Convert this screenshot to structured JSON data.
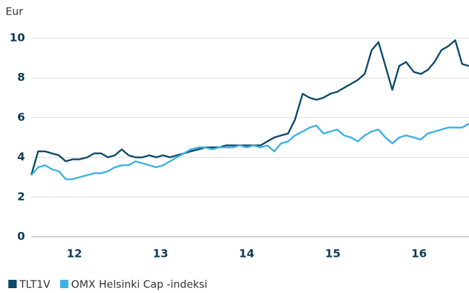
{
  "chart_data": {
    "type": "line",
    "ylabel": "Eur",
    "x": [
      12.0,
      12.08,
      12.16,
      12.24,
      12.32,
      12.4,
      12.48,
      12.56,
      12.65,
      12.73,
      12.81,
      12.89,
      12.97,
      13.05,
      13.13,
      13.21,
      13.29,
      13.37,
      13.45,
      13.53,
      13.61,
      13.69,
      13.77,
      13.85,
      13.94,
      14.02,
      14.1,
      14.18,
      14.26,
      14.34,
      14.42,
      14.5,
      14.58,
      14.66,
      14.74,
      14.82,
      14.9,
      14.98,
      15.06,
      15.15,
      15.23,
      15.31,
      15.39,
      15.47,
      15.55,
      15.63,
      15.71,
      15.79,
      15.87,
      15.95,
      16.03,
      16.11,
      16.19,
      16.27,
      16.35,
      16.44,
      16.52,
      16.6,
      16.68,
      16.76,
      16.84,
      16.92,
      17.0,
      17.08
    ],
    "series": [
      {
        "name": "TLT1V",
        "color": "#0d4a6b",
        "values": [
          3.1,
          4.3,
          4.3,
          4.2,
          4.1,
          3.8,
          3.9,
          3.9,
          4.0,
          4.2,
          4.2,
          4.0,
          4.1,
          4.4,
          4.1,
          4.0,
          4.0,
          4.1,
          4.0,
          4.1,
          4.0,
          4.1,
          4.2,
          4.3,
          4.4,
          4.5,
          4.5,
          4.5,
          4.6,
          4.6,
          4.6,
          4.6,
          4.6,
          4.6,
          4.8,
          5.0,
          5.1,
          5.2,
          5.9,
          7.2,
          7.0,
          6.9,
          7.0,
          7.2,
          7.3,
          7.5,
          7.7,
          7.9,
          8.2,
          9.4,
          9.8,
          8.6,
          7.4,
          8.6,
          8.8,
          8.3,
          8.2,
          8.4,
          8.8,
          9.4,
          9.6,
          9.9,
          8.7,
          8.6
        ]
      },
      {
        "name": "OMX Helsinki Cap -indeksi",
        "color": "#3bb2e3",
        "values": [
          3.1,
          3.5,
          3.6,
          3.4,
          3.3,
          2.9,
          2.9,
          3.0,
          3.1,
          3.2,
          3.2,
          3.3,
          3.5,
          3.6,
          3.6,
          3.8,
          3.7,
          3.6,
          3.5,
          3.6,
          3.8,
          4.0,
          4.2,
          4.4,
          4.5,
          4.5,
          4.4,
          4.5,
          4.5,
          4.5,
          4.6,
          4.5,
          4.6,
          4.5,
          4.6,
          4.3,
          4.7,
          4.8,
          5.1,
          5.3,
          5.5,
          5.6,
          5.2,
          5.3,
          5.4,
          5.1,
          5.0,
          4.8,
          5.1,
          5.3,
          5.4,
          5.0,
          4.7,
          5.0,
          5.1,
          5.0,
          4.9,
          5.2,
          5.3,
          5.4,
          5.5,
          5.5,
          5.5,
          5.7
        ]
      }
    ],
    "xlim": [
      12,
      17.08
    ],
    "xticks": [
      {
        "value": 12.5,
        "label": "12"
      },
      {
        "value": 13.5,
        "label": "13"
      },
      {
        "value": 14.5,
        "label": "14"
      },
      {
        "value": 15.5,
        "label": "15"
      },
      {
        "value": 16.5,
        "label": "16"
      }
    ],
    "ylim": [
      0,
      10
    ],
    "yticks": [
      0,
      2,
      4,
      6,
      8,
      10
    ],
    "grid": true,
    "legend": "bottom-left"
  }
}
